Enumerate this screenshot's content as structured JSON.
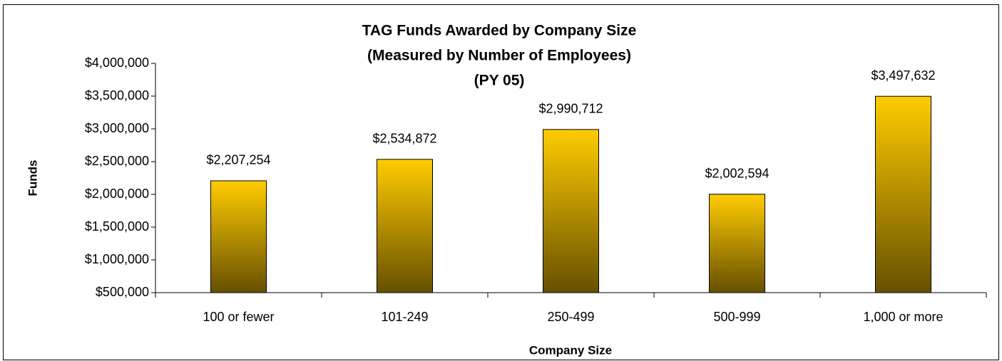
{
  "chart_data": {
    "type": "bar",
    "title": [
      "TAG Funds Awarded by Company Size",
      "(Measured by Number of Employees)",
      "(PY 05)"
    ],
    "x_label": "Company Size",
    "y_label": "Funds",
    "categories": [
      "100 or fewer",
      "101-249",
      "250-499",
      "500-999",
      "1,000 or more"
    ],
    "values": [
      2207254,
      2534872,
      2990712,
      2002594,
      3497632
    ],
    "value_labels": [
      "$2,207,254",
      "$2,534,872",
      "$2,990,712",
      "$2,002,594",
      "$3,497,632"
    ],
    "gradient": [
      "#ffcc00",
      "#665000"
    ],
    "ylim": [
      500000,
      4000000
    ],
    "yticks": [
      {
        "value": 500000,
        "label": "$500,000"
      },
      {
        "value": 1000000,
        "label": "$1,000,000"
      },
      {
        "value": 1500000,
        "label": "$1,500,000"
      },
      {
        "value": 2000000,
        "label": "$2,000,000"
      },
      {
        "value": 2500000,
        "label": "$2,500,000"
      },
      {
        "value": 3000000,
        "label": "$3,000,000"
      },
      {
        "value": 3500000,
        "label": "$3,500,000"
      },
      {
        "value": 4000000,
        "label": "$4,000,000"
      }
    ],
    "grid": false
  }
}
